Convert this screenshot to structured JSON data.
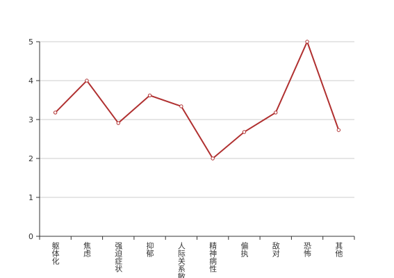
{
  "chart_data": {
    "type": "line",
    "categories": [
      "躯体化",
      "焦虑",
      "强迫症状",
      "抑郁",
      "人际关系敏感",
      "精神病性",
      "偏执",
      "敌对",
      "恐怖",
      "其他"
    ],
    "values": [
      3.18,
      4.0,
      2.91,
      3.62,
      3.34,
      2.0,
      2.68,
      3.18,
      5.0,
      2.73
    ],
    "color": "#b03030",
    "ylim": [
      0,
      5
    ],
    "yticks": [
      0,
      1,
      2,
      3,
      4,
      5
    ],
    "grid": true
  }
}
